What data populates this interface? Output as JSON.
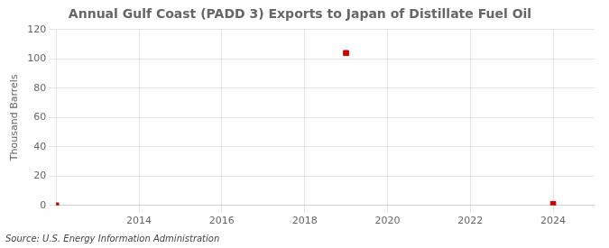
{
  "chart_data": {
    "type": "scatter",
    "title": "Annual Gulf Coast (PADD 3) Exports to Japan of Distillate Fuel Oil",
    "ylabel": "Thousand Barrels",
    "source": "Source: U.S. Energy Information Administration",
    "x": [
      2012,
      2019,
      2024
    ],
    "values": [
      0,
      104,
      1
    ],
    "color": "#cc0000",
    "marker": "square",
    "xlim": [
      2012,
      2025
    ],
    "ylim": [
      0,
      120
    ],
    "xticks": [
      2014,
      2016,
      2018,
      2020,
      2022,
      2024
    ],
    "yticks": [
      0,
      20,
      40,
      60,
      80,
      100,
      120
    ],
    "grid": true
  }
}
